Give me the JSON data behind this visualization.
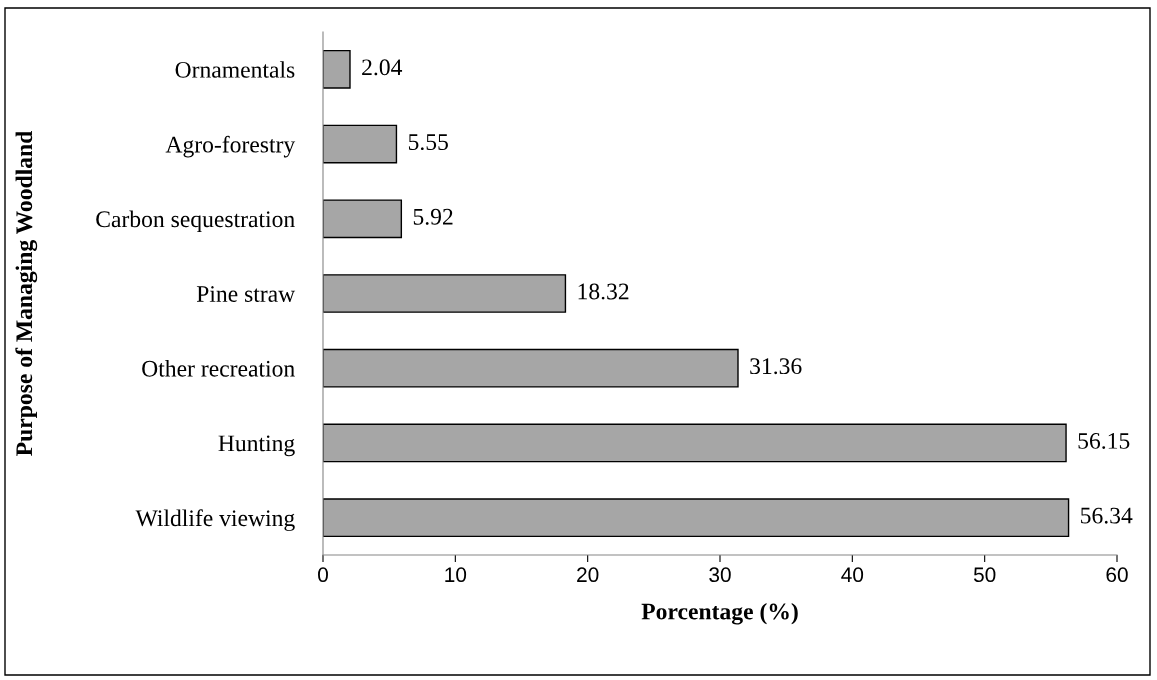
{
  "chart_data": {
    "type": "bar",
    "orientation": "horizontal",
    "xlabel": "Porcentage (%)",
    "ylabel": "Purpose of Managing Woodland",
    "categories": [
      "Ornamentals",
      "Agro-forestry",
      "Carbon sequestration",
      "Pine straw",
      "Other recreation",
      "Hunting",
      "Wildlife viewing"
    ],
    "values": [
      2.04,
      5.55,
      5.92,
      18.32,
      31.36,
      56.15,
      56.34
    ],
    "color": "#a6a6a6",
    "xlim": [
      0,
      60
    ],
    "xticks": [
      0,
      10,
      20,
      30,
      40,
      50,
      60
    ],
    "data_labels": true,
    "grid": false,
    "legend": false
  }
}
